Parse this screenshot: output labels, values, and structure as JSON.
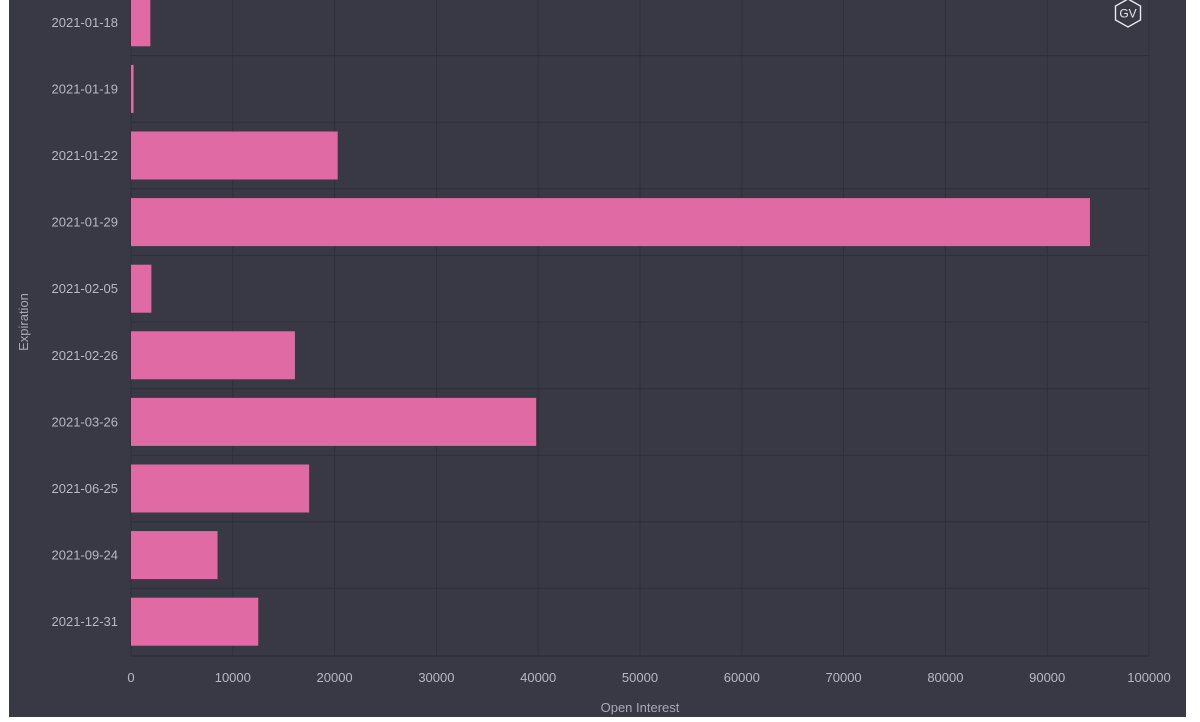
{
  "chart_data": {
    "type": "bar",
    "orientation": "horizontal",
    "categories": [
      "2021-01-18",
      "2021-01-19",
      "2021-01-22",
      "2021-01-29",
      "2021-02-05",
      "2021-02-26",
      "2021-03-26",
      "2021-06-25",
      "2021-09-24",
      "2021-12-31"
    ],
    "values": [
      1900,
      250,
      20300,
      94200,
      2000,
      16100,
      39800,
      17500,
      8500,
      12500
    ],
    "xlabel": "Open Interest",
    "ylabel": "Expiration",
    "xlim": [
      0,
      100000
    ],
    "x_ticks": [
      "0",
      "10000",
      "20000",
      "30000",
      "40000",
      "50000",
      "60000",
      "70000",
      "80000",
      "90000",
      "100000"
    ],
    "grid": true,
    "bar_color": "#e06ba4",
    "background_color": "#393946"
  },
  "watermark": {
    "text": "GV",
    "icon": "hexagon-logo-icon"
  }
}
